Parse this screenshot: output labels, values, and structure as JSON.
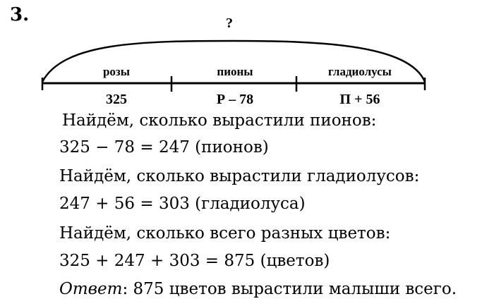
{
  "problem_number": "3.",
  "diagram": {
    "total_label": "?",
    "segments": [
      {
        "label": "розы",
        "value": "325"
      },
      {
        "label": "пионы",
        "value": "Р – 78"
      },
      {
        "label": "гладиолусы",
        "value": "П + 56"
      }
    ]
  },
  "solution": [
    "Найдём, сколько вырастили пионов:",
    "325 − 78 = 247 (пионов)",
    "Найдём, сколько вырастили гладиолусов:",
    "247 + 56 = 303 (гладиолуса)",
    "Найдём, сколько всего разных цветов:",
    "325 + 247 + 303 = 875 (цветов)"
  ],
  "answer": {
    "label": "Ответ",
    "text": ": 875 цветов вырастили малыши всего."
  }
}
